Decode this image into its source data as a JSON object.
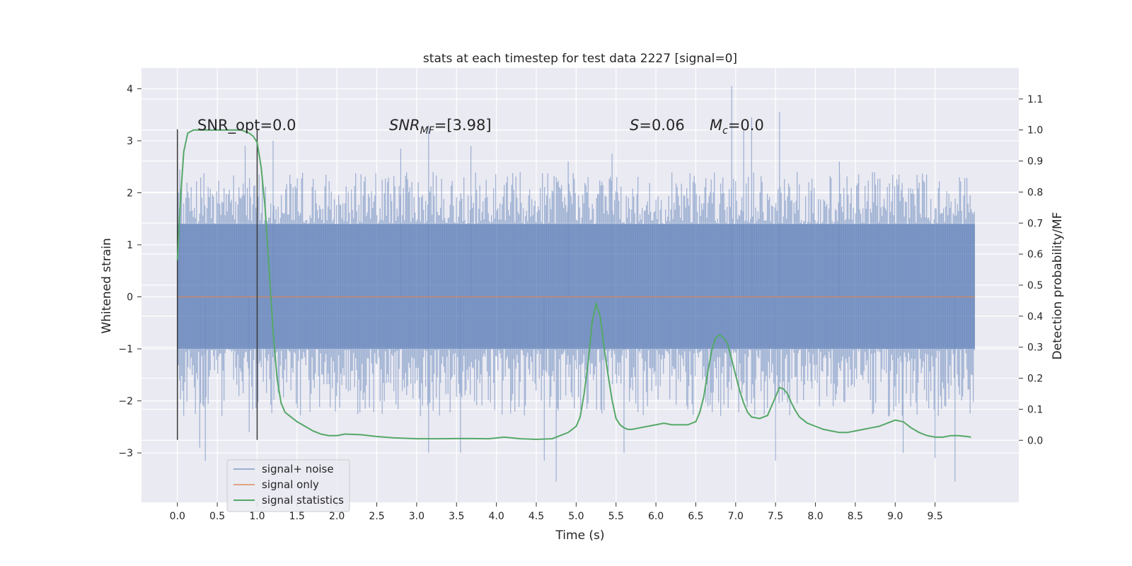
{
  "chart_data": {
    "type": "line",
    "title": "stats at each timestep for test data 2227 [signal=0]",
    "xlabel": "Time (s)",
    "ylabel": "Whitened strain",
    "ylabel_right": "Detection probability/MF",
    "xlim": [
      -0.45,
      10.55
    ],
    "ylim": [
      -3.95,
      4.4
    ],
    "ylim_right": [
      -0.2,
      1.2
    ],
    "x_ticks": [
      "0.0",
      "0.5",
      "1.0",
      "1.5",
      "2.0",
      "2.5",
      "3.0",
      "3.5",
      "4.0",
      "4.5",
      "5.0",
      "5.5",
      "6.0",
      "6.5",
      "7.0",
      "7.5",
      "8.0",
      "8.5",
      "9.0",
      "9.5"
    ],
    "y_ticks": [
      -3,
      -2,
      -1,
      0,
      1,
      2,
      3,
      4
    ],
    "y_tick_labels": [
      "−3",
      "−2",
      "−1",
      "0",
      "1",
      "2",
      "3",
      "4"
    ],
    "y_right_ticks": [
      "0.0",
      "0.1",
      "0.2",
      "0.3",
      "0.4",
      "0.5",
      "0.6",
      "0.7",
      "0.8",
      "0.9",
      "1.0",
      "1.1"
    ],
    "grid": true,
    "legend_position": "lower-left",
    "annotations": {
      "snr_opt": "SNR_opt=0.0",
      "snr_mf_var": "SNR",
      "snr_mf_sub": "MF",
      "snr_mf_val": "=[3.98]",
      "s_var": "S",
      "s_val": "=0.06",
      "mc_var": "M",
      "mc_sub": "c",
      "mc_val": "=0.0"
    },
    "vertical_markers_x": [
      0.0,
      1.0
    ],
    "series": [
      {
        "name": "signal+ noise",
        "color": "#4c72b0",
        "opacity": 0.5,
        "x_range": [
          0.0,
          10.0
        ],
        "band_core": [
          -1.0,
          1.4
        ],
        "band_typical": [
          -2.0,
          2.1
        ],
        "peaks_high": [
          [
            0.03,
            2.45
          ],
          [
            0.85,
            2.9
          ],
          [
            1.2,
            3.0
          ],
          [
            2.8,
            2.85
          ],
          [
            3.15,
            3.3
          ],
          [
            3.68,
            2.9
          ],
          [
            4.9,
            2.6
          ],
          [
            5.45,
            2.75
          ],
          [
            6.95,
            4.05
          ],
          [
            7.1,
            3.2
          ],
          [
            7.2,
            3.45
          ],
          [
            7.55,
            3.55
          ],
          [
            8.3,
            2.6
          ]
        ],
        "peaks_low": [
          [
            0.28,
            -2.9
          ],
          [
            0.35,
            -3.15
          ],
          [
            0.9,
            -2.6
          ],
          [
            3.15,
            -3.0
          ],
          [
            3.55,
            -3.0
          ],
          [
            4.6,
            -3.15
          ],
          [
            4.75,
            -3.55
          ],
          [
            5.6,
            -3.0
          ],
          [
            7.5,
            -3.15
          ],
          [
            9.1,
            -3.0
          ],
          [
            9.5,
            -3.1
          ],
          [
            9.75,
            -3.55
          ]
        ]
      },
      {
        "name": "signal only",
        "color": "#dd8452",
        "x": [
          0.0,
          10.0
        ],
        "y": [
          0.0,
          0.0
        ]
      },
      {
        "name": "signal statistics",
        "color": "#55a868",
        "axis": "right",
        "x": [
          0.0,
          0.04,
          0.08,
          0.13,
          0.2,
          0.3,
          0.5,
          0.7,
          0.8,
          0.9,
          0.95,
          1.0,
          1.05,
          1.1,
          1.15,
          1.2,
          1.25,
          1.3,
          1.35,
          1.4,
          1.5,
          1.6,
          1.7,
          1.8,
          1.9,
          2.0,
          2.1,
          2.3,
          2.5,
          2.7,
          3.0,
          3.3,
          3.6,
          3.9,
          4.1,
          4.3,
          4.5,
          4.7,
          4.8,
          4.9,
          5.0,
          5.05,
          5.1,
          5.15,
          5.2,
          5.25,
          5.3,
          5.35,
          5.4,
          5.45,
          5.5,
          5.55,
          5.6,
          5.65,
          5.7,
          5.8,
          5.9,
          6.0,
          6.1,
          6.2,
          6.3,
          6.4,
          6.5,
          6.55,
          6.6,
          6.65,
          6.7,
          6.75,
          6.8,
          6.85,
          6.9,
          6.95,
          7.0,
          7.05,
          7.1,
          7.15,
          7.2,
          7.3,
          7.4,
          7.45,
          7.5,
          7.55,
          7.6,
          7.65,
          7.7,
          7.75,
          7.8,
          7.9,
          8.0,
          8.1,
          8.2,
          8.3,
          8.4,
          8.5,
          8.6,
          8.7,
          8.8,
          8.9,
          9.0,
          9.1,
          9.2,
          9.3,
          9.4,
          9.5,
          9.6,
          9.7,
          9.8,
          9.9,
          9.95
        ],
        "y": [
          0.58,
          0.78,
          0.93,
          0.99,
          1.0,
          1.0,
          1.0,
          1.0,
          1.0,
          0.99,
          0.98,
          0.96,
          0.88,
          0.75,
          0.55,
          0.35,
          0.2,
          0.12,
          0.09,
          0.08,
          0.06,
          0.045,
          0.03,
          0.02,
          0.015,
          0.015,
          0.02,
          0.018,
          0.012,
          0.008,
          0.005,
          0.005,
          0.006,
          0.005,
          0.01,
          0.005,
          0.003,
          0.005,
          0.015,
          0.025,
          0.045,
          0.075,
          0.15,
          0.25,
          0.38,
          0.44,
          0.4,
          0.3,
          0.21,
          0.13,
          0.07,
          0.05,
          0.04,
          0.035,
          0.035,
          0.04,
          0.045,
          0.05,
          0.055,
          0.05,
          0.05,
          0.05,
          0.06,
          0.09,
          0.14,
          0.22,
          0.29,
          0.33,
          0.34,
          0.33,
          0.31,
          0.26,
          0.21,
          0.16,
          0.12,
          0.09,
          0.075,
          0.07,
          0.08,
          0.11,
          0.14,
          0.17,
          0.165,
          0.15,
          0.12,
          0.095,
          0.075,
          0.055,
          0.045,
          0.035,
          0.03,
          0.025,
          0.025,
          0.03,
          0.035,
          0.04,
          0.045,
          0.055,
          0.065,
          0.06,
          0.04,
          0.025,
          0.015,
          0.01,
          0.01,
          0.015,
          0.015,
          0.012,
          0.01
        ]
      }
    ]
  }
}
